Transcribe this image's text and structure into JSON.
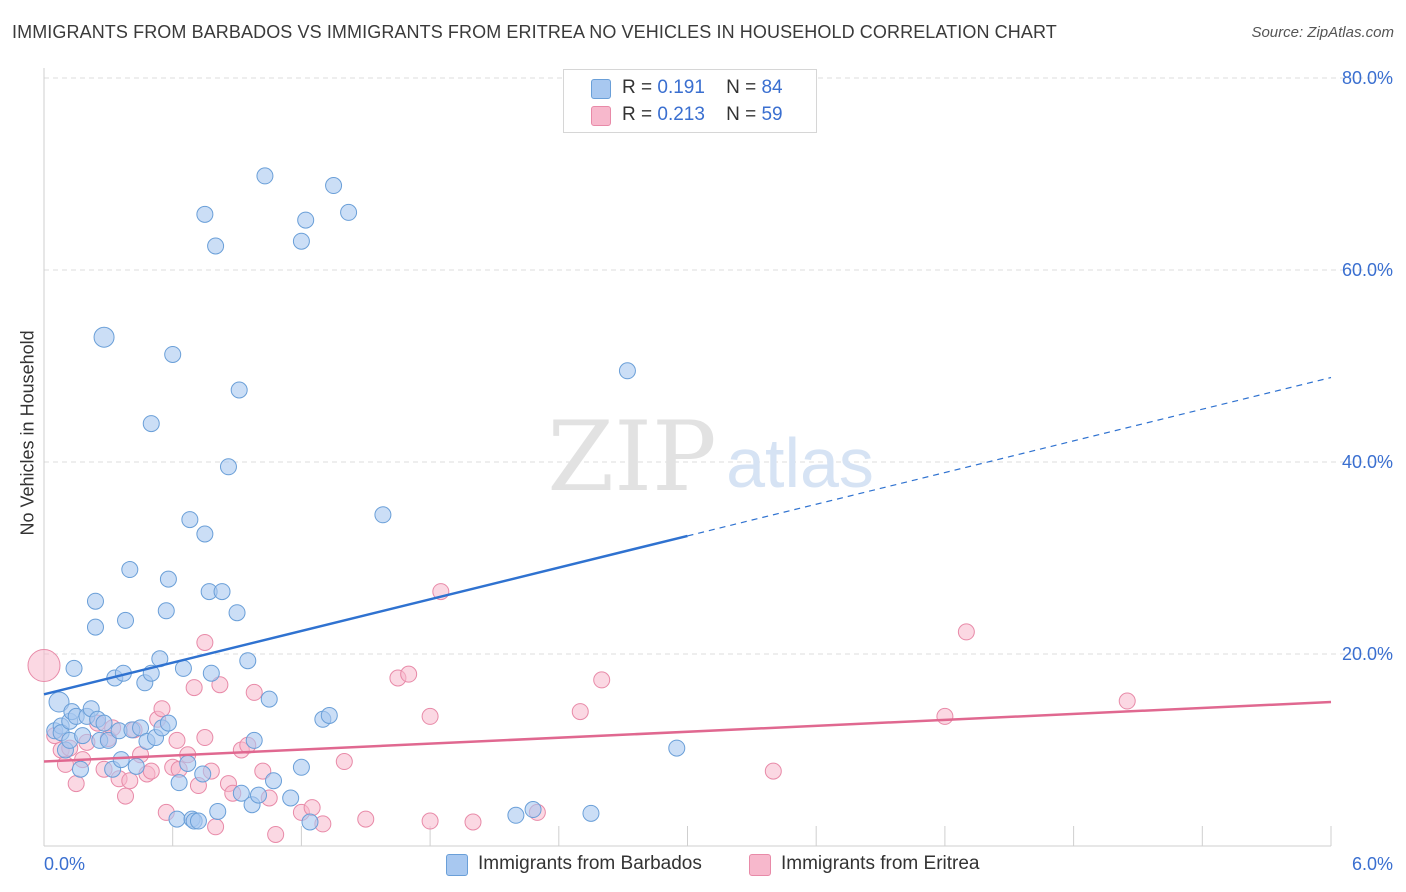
{
  "title": "IMMIGRANTS FROM BARBADOS VS IMMIGRANTS FROM ERITREA NO VEHICLES IN HOUSEHOLD CORRELATION CHART",
  "source": "Source: ZipAtlas.com",
  "watermark": {
    "zip": "ZIP",
    "atlas": "atlas"
  },
  "legend": {
    "barbados": {
      "r_label": "R =",
      "r_value": "0.191",
      "n_label": "N =",
      "n_value": "84"
    },
    "eritrea": {
      "r_label": "R =",
      "r_value": "0.213",
      "n_label": "N =",
      "n_value": "59"
    }
  },
  "colors": {
    "barbados_fill": "#a8c8f0",
    "barbados_stroke": "#6a9fd8",
    "barbados_line": "#2f72d0",
    "eritrea_fill": "#f7b8cc",
    "eritrea_stroke": "#e88aa8",
    "eritrea_line": "#e06890",
    "tick_label": "#3a6fd0",
    "grid": "#dcdcdc"
  },
  "chart_data": {
    "type": "scatter",
    "title": "IMMIGRANTS FROM BARBADOS VS IMMIGRANTS FROM ERITREA NO VEHICLES IN HOUSEHOLD CORRELATION CHART",
    "xlabel": "",
    "ylabel": "No Vehicles in Household",
    "xlim": [
      0,
      6
    ],
    "ylim": [
      0,
      80
    ],
    "x_ticks": [
      {
        "v": 0,
        "label": "0.0%"
      },
      {
        "v": 6,
        "label": "6.0%"
      }
    ],
    "y_ticks": [
      {
        "v": 20,
        "label": "20.0%"
      },
      {
        "v": 40,
        "label": "40.0%"
      },
      {
        "v": 60,
        "label": "60.0%"
      },
      {
        "v": 80,
        "label": "80.0%"
      }
    ],
    "grid": true,
    "legend_position": "top-center",
    "series": [
      {
        "name": "Immigrants from Barbados",
        "trend": {
          "x0": 0,
          "y0": 15.8,
          "x1": 3.0,
          "y1": 32.3,
          "dash_to_x": 6.0,
          "dash_to_y": 48.8
        },
        "points": [
          [
            0.05,
            12
          ],
          [
            0.07,
            15
          ],
          [
            0.08,
            12.5
          ],
          [
            0.08,
            11.8
          ],
          [
            0.1,
            10
          ],
          [
            0.12,
            13
          ],
          [
            0.12,
            11
          ],
          [
            0.13,
            14
          ],
          [
            0.14,
            18.5
          ],
          [
            0.15,
            13.5
          ],
          [
            0.17,
            8
          ],
          [
            0.18,
            11.5
          ],
          [
            0.2,
            13.5
          ],
          [
            0.22,
            14.3
          ],
          [
            0.24,
            25.5
          ],
          [
            0.24,
            22.8
          ],
          [
            0.25,
            13.2
          ],
          [
            0.26,
            11
          ],
          [
            0.28,
            12.8
          ],
          [
            0.28,
            53
          ],
          [
            0.3,
            11
          ],
          [
            0.32,
            8
          ],
          [
            0.33,
            17.5
          ],
          [
            0.35,
            12
          ],
          [
            0.36,
            9
          ],
          [
            0.37,
            18
          ],
          [
            0.38,
            23.5
          ],
          [
            0.4,
            28.8
          ],
          [
            0.41,
            12.1
          ],
          [
            0.43,
            8.3
          ],
          [
            0.45,
            12.3
          ],
          [
            0.47,
            17
          ],
          [
            0.48,
            10.9
          ],
          [
            0.5,
            18
          ],
          [
            0.5,
            44
          ],
          [
            0.52,
            11.3
          ],
          [
            0.54,
            19.5
          ],
          [
            0.55,
            12.3
          ],
          [
            0.57,
            24.5
          ],
          [
            0.58,
            27.8
          ],
          [
            0.58,
            12.8
          ],
          [
            0.6,
            51.2
          ],
          [
            0.62,
            2.8
          ],
          [
            0.63,
            6.6
          ],
          [
            0.65,
            18.5
          ],
          [
            0.67,
            8.6
          ],
          [
            0.68,
            34
          ],
          [
            0.69,
            2.8
          ],
          [
            0.7,
            2.6
          ],
          [
            0.72,
            2.6
          ],
          [
            0.74,
            7.5
          ],
          [
            0.75,
            32.5
          ],
          [
            0.75,
            65.8
          ],
          [
            0.77,
            26.5
          ],
          [
            0.78,
            18
          ],
          [
            0.8,
            62.5
          ],
          [
            0.81,
            3.6
          ],
          [
            0.83,
            26.5
          ],
          [
            0.86,
            39.5
          ],
          [
            0.9,
            24.3
          ],
          [
            0.91,
            47.5
          ],
          [
            0.92,
            5.5
          ],
          [
            0.95,
            19.3
          ],
          [
            0.97,
            4.3
          ],
          [
            0.98,
            11
          ],
          [
            1.0,
            5.3
          ],
          [
            1.03,
            69.8
          ],
          [
            1.05,
            15.3
          ],
          [
            1.07,
            6.8
          ],
          [
            1.15,
            5
          ],
          [
            1.2,
            8.2
          ],
          [
            1.2,
            63
          ],
          [
            1.22,
            65.2
          ],
          [
            1.24,
            2.5
          ],
          [
            1.3,
            13.2
          ],
          [
            1.33,
            13.6
          ],
          [
            1.35,
            68.8
          ],
          [
            1.42,
            66
          ],
          [
            1.58,
            34.5
          ],
          [
            2.2,
            3.2
          ],
          [
            2.28,
            3.8
          ],
          [
            2.55,
            3.4
          ],
          [
            2.72,
            49.5
          ],
          [
            2.95,
            10.2
          ]
        ],
        "point_sizes_note": "most points radius 8, a few larger (0.28,53) and (0.07,15) radius 10"
      },
      {
        "name": "Immigrants from Eritrea",
        "trend": {
          "x0": 0,
          "y0": 8.8,
          "x1": 6.0,
          "y1": 15.0
        },
        "points": [
          [
            0.0,
            18.8
          ],
          [
            0.05,
            11.5
          ],
          [
            0.08,
            10
          ],
          [
            0.1,
            8.5
          ],
          [
            0.12,
            10.2
          ],
          [
            0.15,
            6.5
          ],
          [
            0.18,
            9
          ],
          [
            0.2,
            10.8
          ],
          [
            0.25,
            12.8
          ],
          [
            0.28,
            8
          ],
          [
            0.3,
            11.2
          ],
          [
            0.32,
            12.3
          ],
          [
            0.35,
            7
          ],
          [
            0.38,
            5.2
          ],
          [
            0.4,
            6.8
          ],
          [
            0.42,
            12.1
          ],
          [
            0.45,
            9.5
          ],
          [
            0.48,
            7.5
          ],
          [
            0.5,
            7.8
          ],
          [
            0.53,
            13.2
          ],
          [
            0.55,
            14.3
          ],
          [
            0.57,
            3.5
          ],
          [
            0.6,
            8.2
          ],
          [
            0.62,
            11
          ],
          [
            0.63,
            8
          ],
          [
            0.67,
            9.5
          ],
          [
            0.7,
            16.5
          ],
          [
            0.72,
            6.3
          ],
          [
            0.75,
            11.3
          ],
          [
            0.75,
            21.2
          ],
          [
            0.78,
            7.8
          ],
          [
            0.8,
            2
          ],
          [
            0.82,
            16.8
          ],
          [
            0.86,
            6.5
          ],
          [
            0.88,
            5.5
          ],
          [
            0.92,
            10
          ],
          [
            0.95,
            10.5
          ],
          [
            0.98,
            16
          ],
          [
            1.02,
            7.8
          ],
          [
            1.05,
            5
          ],
          [
            1.08,
            1.2
          ],
          [
            1.2,
            3.5
          ],
          [
            1.25,
            4
          ],
          [
            1.3,
            2.3
          ],
          [
            1.4,
            8.8
          ],
          [
            1.5,
            2.8
          ],
          [
            1.65,
            17.5
          ],
          [
            1.7,
            17.9
          ],
          [
            1.8,
            2.6
          ],
          [
            1.8,
            13.5
          ],
          [
            1.85,
            26.5
          ],
          [
            2.0,
            2.5
          ],
          [
            2.3,
            3.5
          ],
          [
            2.5,
            14
          ],
          [
            2.6,
            17.3
          ],
          [
            3.4,
            7.8
          ],
          [
            4.2,
            13.5
          ],
          [
            4.3,
            22.3
          ],
          [
            5.05,
            15.1
          ]
        ]
      }
    ]
  },
  "bottom_legend": {
    "barbados": "Immigrants from Barbados",
    "eritrea": "Immigrants from Eritrea"
  }
}
